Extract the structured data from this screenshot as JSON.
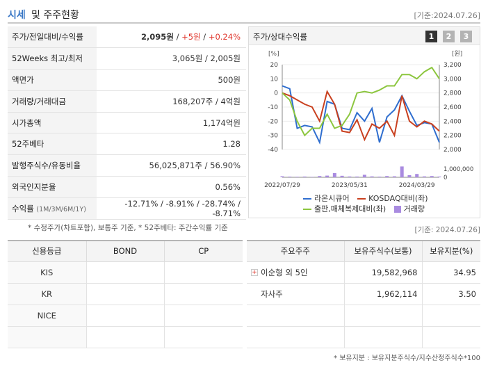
{
  "header": {
    "title_blue": "시세",
    "title_rest": "및 주주현황",
    "date": "[기준:2024.07.26]"
  },
  "quote": {
    "price_label": "주가/전일대비/수익률",
    "price": "2,095원",
    "change": "+5원",
    "rate": "+0.24%",
    "w52_label": "52Weeks 최고/최저",
    "w52": "3,065원 / 2,005원",
    "par_label": "액면가",
    "par": "500원",
    "volume_label": "거래량/거래대금",
    "volume": "168,207주 / 4억원",
    "mktcap_label": "시가총액",
    "mktcap": "1,174억원",
    "beta_label": "52주베타",
    "beta": "1.28",
    "shares_label": "발행주식수/유동비율",
    "shares": "56,025,871주 / 56.90%",
    "foreign_label": "외국인지분율",
    "foreign": "0.56%",
    "return_label": "수익률",
    "return_period": "(1M/3M/6M/1Y)",
    "returns": "-12.71% / -8.91% / -28.74% / -8.71%"
  },
  "chart_panel": {
    "label": "주가/상대수익률",
    "pages": [
      "1",
      "2",
      "3"
    ],
    "left_unit": "[%]",
    "right_unit": "[원]"
  },
  "chart_data": {
    "type": "line",
    "x": [
      "2022/07/29",
      "2022/09",
      "2022/10",
      "2022/11",
      "2022/12",
      "2023/01",
      "2023/02",
      "2023/03",
      "2023/04",
      "2023/05/31",
      "2023/07",
      "2023/08",
      "2023/09",
      "2023/10",
      "2023/11",
      "2023/12",
      "2024/01",
      "2024/02",
      "2024/03/29",
      "2024/05",
      "2024/06",
      "2024/07"
    ],
    "x_ticks": [
      "2022/07/29",
      "2023/05/31",
      "2024/03/29"
    ],
    "y_left": {
      "ticks": [
        20,
        10,
        0,
        -10,
        -20,
        -30,
        -40
      ],
      "range": [
        -40,
        20
      ]
    },
    "y_right": {
      "ticks": [
        "3,200",
        "3,000",
        "2,800",
        "2,600",
        "2,400",
        "2,200",
        "2,000"
      ],
      "range": [
        2000,
        3200
      ]
    },
    "y_volume": {
      "ticks": [
        "1,000,000",
        "0"
      ],
      "range": [
        0,
        2500000
      ]
    },
    "series": [
      {
        "name": "라온시큐어",
        "color": "#2f6ecf",
        "values": [
          5,
          3,
          -25,
          -23,
          -24,
          -35,
          -6,
          -8,
          -25,
          -26,
          -14,
          -20,
          -11,
          -35,
          -17,
          -12,
          -2,
          -13,
          -23,
          -21,
          -22,
          -35
        ]
      },
      {
        "name": "KOSDAQ대비(좌)",
        "color": "#c9401f",
        "values": [
          0,
          -2,
          -5,
          -8,
          -10,
          -20,
          1,
          -8,
          -27,
          -28,
          -19,
          -33,
          -22,
          -25,
          -20,
          -30,
          -2,
          -20,
          -24,
          -20,
          -22,
          -27
        ]
      },
      {
        "name": "출판,매체복제대비(좌)",
        "color": "#8cc63e",
        "values": [
          0,
          -5,
          -20,
          -30,
          -25,
          -25,
          -15,
          -25,
          -23,
          -15,
          0,
          1,
          0,
          2,
          5,
          5,
          13,
          13,
          10,
          15,
          18,
          10
        ]
      },
      {
        "name": "거래량",
        "color": "#a98be0",
        "type": "bar",
        "values": [
          120000,
          80000,
          60000,
          90000,
          50000,
          150000,
          200000,
          500000,
          180000,
          100000,
          90000,
          300000,
          110000,
          80000,
          150000,
          120000,
          1300000,
          250000,
          400000,
          110000,
          150000,
          90000
        ]
      }
    ]
  },
  "footnote": "* 수정주가(차트포함), 보통주 기준, * 52주베타: 주간수익률 기준",
  "date2": "[기준: 2024.07.26]",
  "credit": {
    "headers": [
      "신용등급",
      "BOND",
      "CP"
    ],
    "rows": [
      [
        "KIS",
        "",
        ""
      ],
      [
        "KR",
        "",
        ""
      ],
      [
        "NICE",
        "",
        ""
      ],
      [
        "",
        "",
        ""
      ]
    ]
  },
  "holders": {
    "headers": [
      "주요주주",
      "보유주식수(보통)",
      "보유지분(%)"
    ],
    "plus": "+",
    "rows": [
      {
        "name": "이순형 외 5인",
        "shares": "19,582,968",
        "pct": "34.95"
      },
      {
        "name": "자사주",
        "shares": "1,962,114",
        "pct": "3.50"
      },
      {
        "name": "",
        "shares": "",
        "pct": ""
      },
      {
        "name": "",
        "shares": "",
        "pct": ""
      }
    ]
  },
  "foot2": "* 보유지분 : 보유지분주식수/지수산정주식수*100"
}
